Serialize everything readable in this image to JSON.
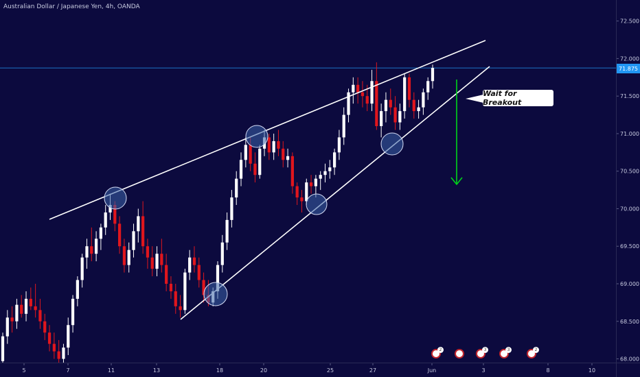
{
  "chart_data": {
    "type": "candlestick",
    "title": "Australian Dollar / Japanese Yen, 4h, OANDA",
    "symbol": "AUDJPY",
    "timeframe": "4h",
    "source": "OANDA",
    "ylim": [
      67.95,
      72.78
    ],
    "y_ticks": [
      "72.500",
      "72.000",
      "71.500",
      "71.000",
      "70.500",
      "70.000",
      "69.500",
      "69.000",
      "68.500",
      "68.000"
    ],
    "x_ticks": [
      "5",
      "7",
      "11",
      "13",
      "18",
      "20",
      "25",
      "27",
      "Jun",
      "3",
      "8",
      "10"
    ],
    "last_price_label": "71.875",
    "last_price": 71.875,
    "colors": {
      "background": "#0c0a3e",
      "up": "#ffffff",
      "down": "#e0161d",
      "trendline": "#ffffff",
      "arrow": "#00d41a",
      "price_line": "#2196f3",
      "circle_fill": "#3b63a8"
    },
    "annotation": "Wait for Breakout",
    "candles": [
      [
        67.97,
        68.35,
        67.95,
        68.3
      ],
      [
        68.3,
        68.65,
        68.2,
        68.55
      ],
      [
        68.55,
        68.7,
        68.35,
        68.5
      ],
      [
        68.5,
        68.8,
        68.4,
        68.72
      ],
      [
        68.72,
        68.85,
        68.55,
        68.6
      ],
      [
        68.6,
        68.9,
        68.5,
        68.8
      ],
      [
        68.8,
        68.95,
        68.65,
        68.7
      ],
      [
        68.7,
        69.0,
        68.55,
        68.65
      ],
      [
        68.65,
        68.8,
        68.4,
        68.5
      ],
      [
        68.5,
        68.6,
        68.25,
        68.35
      ],
      [
        68.35,
        68.45,
        68.1,
        68.2
      ],
      [
        68.2,
        68.35,
        68.0,
        68.1
      ],
      [
        68.1,
        68.25,
        67.95,
        68.0
      ],
      [
        68.0,
        68.2,
        67.95,
        68.15
      ],
      [
        68.15,
        68.55,
        68.05,
        68.45
      ],
      [
        68.45,
        68.85,
        68.35,
        68.8
      ],
      [
        68.8,
        69.1,
        68.7,
        69.05
      ],
      [
        69.05,
        69.4,
        68.95,
        69.35
      ],
      [
        69.35,
        69.6,
        69.2,
        69.5
      ],
      [
        69.5,
        69.75,
        69.3,
        69.4
      ],
      [
        69.4,
        69.7,
        69.3,
        69.6
      ],
      [
        69.6,
        69.8,
        69.45,
        69.75
      ],
      [
        69.75,
        70.05,
        69.65,
        69.95
      ],
      [
        69.95,
        70.2,
        69.85,
        70.05
      ],
      [
        70.05,
        70.1,
        69.7,
        69.8
      ],
      [
        69.8,
        69.9,
        69.4,
        69.5
      ],
      [
        69.5,
        69.6,
        69.15,
        69.25
      ],
      [
        69.25,
        69.55,
        69.15,
        69.45
      ],
      [
        69.45,
        69.8,
        69.35,
        69.7
      ],
      [
        69.7,
        70.0,
        69.55,
        69.9
      ],
      [
        69.9,
        70.1,
        69.4,
        69.5
      ],
      [
        69.5,
        69.6,
        69.2,
        69.35
      ],
      [
        69.35,
        69.5,
        69.1,
        69.2
      ],
      [
        69.2,
        69.5,
        69.1,
        69.4
      ],
      [
        69.4,
        69.6,
        69.15,
        69.25
      ],
      [
        69.25,
        69.4,
        68.9,
        69.0
      ],
      [
        69.0,
        69.1,
        68.8,
        68.9
      ],
      [
        68.9,
        69.0,
        68.6,
        68.7
      ],
      [
        68.7,
        68.85,
        68.55,
        68.65
      ],
      [
        68.65,
        69.2,
        68.6,
        69.15
      ],
      [
        69.15,
        69.45,
        69.05,
        69.35
      ],
      [
        69.35,
        69.5,
        69.15,
        69.25
      ],
      [
        69.25,
        69.35,
        68.95,
        69.05
      ],
      [
        69.05,
        69.15,
        68.75,
        68.85
      ],
      [
        68.85,
        69.05,
        68.7,
        68.75
      ],
      [
        68.75,
        68.95,
        68.7,
        68.9
      ],
      [
        68.9,
        69.3,
        68.8,
        69.25
      ],
      [
        69.25,
        69.65,
        69.15,
        69.55
      ],
      [
        69.55,
        69.95,
        69.45,
        69.85
      ],
      [
        69.85,
        70.25,
        69.75,
        70.15
      ],
      [
        70.15,
        70.5,
        70.05,
        70.4
      ],
      [
        70.4,
        70.75,
        70.3,
        70.65
      ],
      [
        70.65,
        70.95,
        70.55,
        70.85
      ],
      [
        70.85,
        70.95,
        70.5,
        70.6
      ],
      [
        70.6,
        70.75,
        70.35,
        70.45
      ],
      [
        70.45,
        70.85,
        70.4,
        70.8
      ],
      [
        70.8,
        71.05,
        70.7,
        70.95
      ],
      [
        70.95,
        71.0,
        70.65,
        70.75
      ],
      [
        70.75,
        71.0,
        70.65,
        70.9
      ],
      [
        70.9,
        71.05,
        70.7,
        70.8
      ],
      [
        70.8,
        70.9,
        70.55,
        70.65
      ],
      [
        70.65,
        70.8,
        70.55,
        70.7
      ],
      [
        70.7,
        70.75,
        70.2,
        70.3
      ],
      [
        70.3,
        70.35,
        70.05,
        70.15
      ],
      [
        70.15,
        70.25,
        69.95,
        70.1
      ],
      [
        70.1,
        70.4,
        70.05,
        70.35
      ],
      [
        70.35,
        70.45,
        70.2,
        70.3
      ],
      [
        70.3,
        70.45,
        70.15,
        70.4
      ],
      [
        70.4,
        70.5,
        70.25,
        70.45
      ],
      [
        70.45,
        70.6,
        70.35,
        70.5
      ],
      [
        70.5,
        70.65,
        70.4,
        70.55
      ],
      [
        70.55,
        70.8,
        70.45,
        70.75
      ],
      [
        70.75,
        71.05,
        70.65,
        70.95
      ],
      [
        70.95,
        71.35,
        70.85,
        71.25
      ],
      [
        71.25,
        71.6,
        71.15,
        71.55
      ],
      [
        71.55,
        71.75,
        71.4,
        71.65
      ],
      [
        71.65,
        71.75,
        71.4,
        71.55
      ],
      [
        71.55,
        71.7,
        71.35,
        71.5
      ],
      [
        71.5,
        71.65,
        71.3,
        71.4
      ],
      [
        71.4,
        71.85,
        71.3,
        71.7
      ],
      [
        71.7,
        71.95,
        71.05,
        71.1
      ],
      [
        71.1,
        71.4,
        70.95,
        71.3
      ],
      [
        71.3,
        71.55,
        71.15,
        71.45
      ],
      [
        71.45,
        71.6,
        71.25,
        71.35
      ],
      [
        71.35,
        71.5,
        71.05,
        71.15
      ],
      [
        71.15,
        71.4,
        71.05,
        71.3
      ],
      [
        71.3,
        71.8,
        71.2,
        71.75
      ],
      [
        71.75,
        71.8,
        71.35,
        71.45
      ],
      [
        71.45,
        71.55,
        71.2,
        71.3
      ],
      [
        71.3,
        71.45,
        71.2,
        71.35
      ],
      [
        71.35,
        71.6,
        71.25,
        71.55
      ],
      [
        71.55,
        71.75,
        71.45,
        71.7
      ],
      [
        71.7,
        71.92,
        71.6,
        71.875
      ]
    ]
  }
}
